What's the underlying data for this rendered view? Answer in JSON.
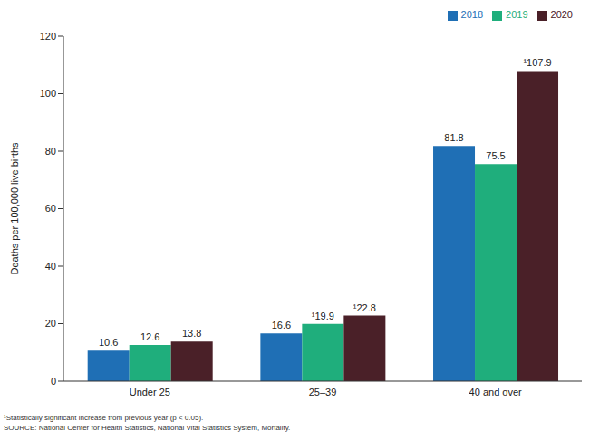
{
  "chart_data": {
    "type": "bar",
    "y_label": "Deaths per 100,000 live births",
    "categories": [
      "Under 25",
      "25–39",
      "40 and over"
    ],
    "series": [
      {
        "name": "2018",
        "color": "#1f6fb5",
        "values": [
          10.6,
          16.6,
          81.8
        ],
        "value_labels": [
          "10.6",
          "16.6",
          "81.8"
        ]
      },
      {
        "name": "2019",
        "color": "#1fae7c",
        "values": [
          12.6,
          19.9,
          75.5
        ],
        "value_labels": [
          "12.6",
          "¹19.9",
          "75.5"
        ]
      },
      {
        "name": "2020",
        "color": "#4a2028",
        "values": [
          13.8,
          22.8,
          107.9
        ],
        "value_labels": [
          "13.8",
          "¹22.8",
          "¹107.9"
        ]
      }
    ],
    "ylim": [
      0,
      120
    ],
    "yticks": [
      0,
      20,
      40,
      60,
      80,
      100,
      120
    ],
    "grid": false,
    "legend": "top-right",
    "data_labels": true,
    "annotations": [
      "¹Statistically significant increase from previous year (p < 0.05).",
      "SOURCE: National Center for Health Statistics, National Vital Statistics System, Mortality."
    ]
  }
}
